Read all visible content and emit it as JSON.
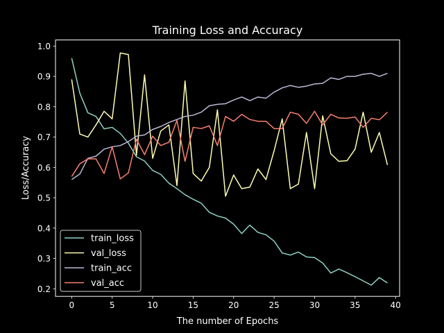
{
  "chart_data": {
    "type": "line",
    "title": "Training Loss and Accuracy",
    "xlabel": "The number of Epochs",
    "ylabel": "Loss/Accuracy",
    "xlim": [
      -2,
      40.5
    ],
    "ylim": [
      0.175,
      1.02
    ],
    "x_ticks": [
      0,
      5,
      10,
      15,
      20,
      25,
      30,
      35,
      40
    ],
    "y_ticks": [
      0.2,
      0.3,
      0.4,
      0.5,
      0.6,
      0.7,
      0.8,
      0.9,
      1.0
    ],
    "grid": false,
    "legend_position": "lower-left",
    "background": "#000000",
    "x": [
      0,
      1,
      2,
      3,
      4,
      5,
      6,
      7,
      8,
      9,
      10,
      11,
      12,
      13,
      14,
      15,
      16,
      17,
      18,
      19,
      20,
      21,
      22,
      23,
      24,
      25,
      26,
      27,
      28,
      29,
      30,
      31,
      32,
      33,
      34,
      35,
      36,
      37,
      38,
      39
    ],
    "series": [
      {
        "name": "train_loss",
        "color": "#8dd3c7",
        "values": [
          0.96,
          0.845,
          0.78,
          0.768,
          0.727,
          0.732,
          0.712,
          0.68,
          0.635,
          0.621,
          0.59,
          0.577,
          0.548,
          0.53,
          0.51,
          0.495,
          0.482,
          0.452,
          0.44,
          0.433,
          0.413,
          0.382,
          0.41,
          0.386,
          0.378,
          0.357,
          0.318,
          0.311,
          0.321,
          0.305,
          0.303,
          0.285,
          0.252,
          0.265,
          0.253,
          0.24,
          0.226,
          0.212,
          0.237,
          0.219
        ]
      },
      {
        "name": "val_loss",
        "color": "#ffffb3",
        "values": [
          0.89,
          0.71,
          0.7,
          0.74,
          0.785,
          0.76,
          0.977,
          0.972,
          0.64,
          0.905,
          0.63,
          0.72,
          0.74,
          0.54,
          0.885,
          0.58,
          0.555,
          0.6,
          0.79,
          0.505,
          0.575,
          0.53,
          0.535,
          0.595,
          0.56,
          0.655,
          0.76,
          0.53,
          0.545,
          0.715,
          0.53,
          0.77,
          0.645,
          0.62,
          0.622,
          0.66,
          0.782,
          0.65,
          0.715,
          0.608
        ]
      },
      {
        "name": "train_acc",
        "color": "#bebada",
        "values": [
          0.56,
          0.578,
          0.63,
          0.637,
          0.66,
          0.668,
          0.672,
          0.685,
          0.703,
          0.707,
          0.725,
          0.735,
          0.748,
          0.758,
          0.768,
          0.772,
          0.782,
          0.803,
          0.808,
          0.81,
          0.822,
          0.832,
          0.82,
          0.832,
          0.828,
          0.848,
          0.862,
          0.87,
          0.864,
          0.868,
          0.875,
          0.877,
          0.895,
          0.89,
          0.9,
          0.9,
          0.907,
          0.91,
          0.9,
          0.91
        ]
      },
      {
        "name": "val_acc",
        "color": "#fb8072",
        "values": [
          0.57,
          0.612,
          0.628,
          0.628,
          0.58,
          0.668,
          0.562,
          0.582,
          0.693,
          0.642,
          0.703,
          0.672,
          0.683,
          0.755,
          0.62,
          0.732,
          0.728,
          0.737,
          0.672,
          0.768,
          0.752,
          0.775,
          0.758,
          0.752,
          0.752,
          0.728,
          0.728,
          0.782,
          0.775,
          0.745,
          0.785,
          0.74,
          0.775,
          0.763,
          0.762,
          0.766,
          0.732,
          0.762,
          0.757,
          0.782
        ]
      }
    ]
  }
}
